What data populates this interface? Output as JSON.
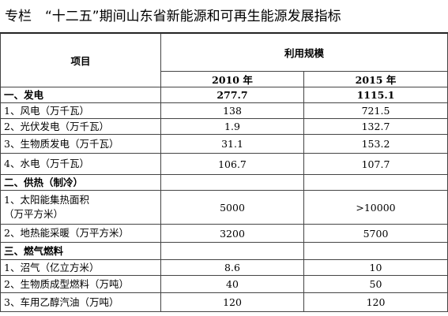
{
  "title": "专栏　“十二五”期间山东省新能源和可再生能源发展指标",
  "table": {
    "header": {
      "item": "项目",
      "scale": "利用规模",
      "years": [
        "2010 年",
        "2015 年"
      ]
    },
    "rows": [
      [
        "一、发电",
        "277.7",
        "1115.1"
      ],
      [
        "1、风电（万千瓦）",
        "138",
        "721.5"
      ],
      [
        "2、光伏发电（万千瓦）",
        "1.9",
        "132.7"
      ],
      [
        "3、生物质发电（万千瓦）",
        "31.1",
        "153.2"
      ],
      [
        "4、水电（万千瓦）",
        "106.7",
        "107.7"
      ],
      [
        "二、供热（制冷）",
        "",
        ""
      ],
      [
        "1、太阳能集热面积\n（万平方米）",
        "5000",
        ">10000"
      ],
      [
        "2、地热能采暖（万平方米）",
        "3200",
        "5700"
      ],
      [
        "三、燃气燃料",
        "",
        ""
      ],
      [
        "1、沼气（亿立方米）",
        "8.6",
        "10"
      ],
      [
        "2、生物质成型燃料（万吨）",
        "40",
        "50"
      ],
      [
        "3、车用乙醇汽油（万吨）",
        "120",
        "120"
      ]
    ]
  }
}
